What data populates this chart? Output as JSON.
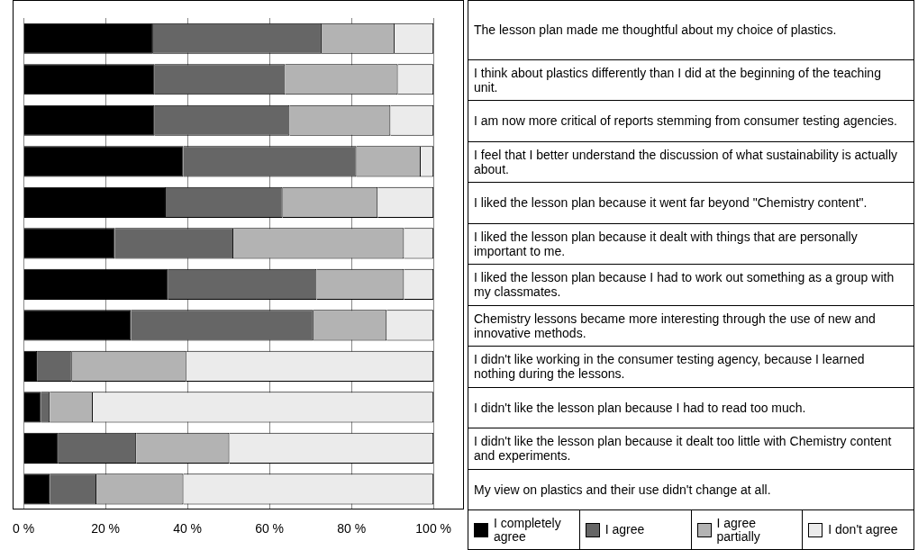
{
  "chart_data": {
    "type": "bar",
    "orientation": "horizontal",
    "stacked": true,
    "categories": [
      "The lesson plan made me thoughtful  about my choice of plastics.",
      "I think about plastics differently than I did at the beginning of the teaching unit.",
      "I am now more critical of reports stemming  from consumer testing agencies.",
      "I feel that I better understand the discussion  of what sustainability  is actually about.",
      "I liked the lesson plan because it went  far beyond \"Chemistry content\".",
      "I liked the lesson plan because it dealt with things that are personally important to me.",
      "I liked the lesson plan because I had to work out something  as a group with my classmates.",
      "Chemistry lessons became more interesting through  the use of new and innovative methods.",
      "I didn't like working in the consumer testing agency, because I learned nothing during the lessons.",
      "I didn't like the lesson plan because I had to read too much.",
      "I didn't like the lesson plan because it dealt too little with Chemistry content and experiments.",
      "My view on plastics and their use didn't change at all."
    ],
    "series": [
      {
        "name": "I completely agree",
        "color": "#000000",
        "values": [
          31.6,
          32,
          32,
          39,
          34.7,
          22.3,
          35.3,
          26.2,
          3.3,
          4.3,
          8.5,
          6.4
        ]
      },
      {
        "name": "I agree",
        "color": "#666666",
        "values": [
          41.1,
          31.8,
          32.9,
          42.2,
          28.5,
          28.9,
          36.2,
          44.5,
          8.5,
          2.1,
          19,
          11.4
        ]
      },
      {
        "name": "I agree partially",
        "color": "#b3b3b3",
        "values": [
          17.8,
          27.5,
          24.6,
          15.7,
          23.2,
          41.6,
          21.3,
          17.9,
          27.9,
          10.5,
          22.7,
          21.2
        ]
      },
      {
        "name": "I don't agree",
        "color": "#ebebeb",
        "values": [
          9.5,
          8.7,
          10.5,
          3.1,
          13.6,
          7.2,
          7.2,
          11.4,
          60.3,
          83.1,
          49.8,
          61
        ]
      }
    ],
    "xlim": [
      0,
      100
    ],
    "xticks": [
      {
        "value": 0,
        "label": "0 %"
      },
      {
        "value": 20,
        "label": "20 %"
      },
      {
        "value": 40,
        "label": "40 %"
      },
      {
        "value": 60,
        "label": "60 %"
      },
      {
        "value": 80,
        "label": "80 %"
      },
      {
        "value": 100,
        "label": "100 %"
      }
    ],
    "grid": "x",
    "legend": "bottom right"
  }
}
